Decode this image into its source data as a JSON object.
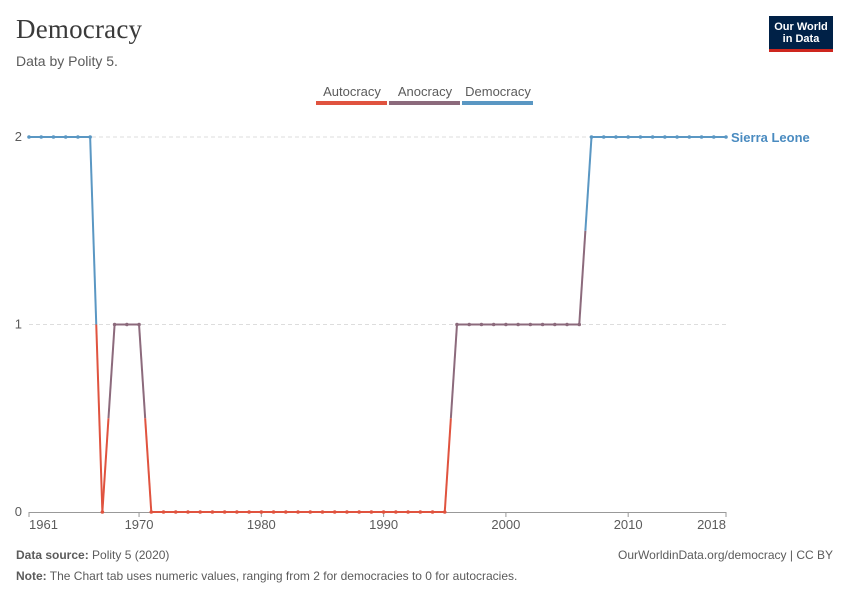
{
  "header": {
    "title": "Democracy",
    "subtitle": "Data by Polity 5."
  },
  "logo": {
    "line1": "Our World",
    "line2": "in Data"
  },
  "footer": {
    "source_label": "Data source:",
    "source_value": "Polity 5 (2020)",
    "url": "OurWorldinData.org/democracy | CC BY",
    "note_label": "Note:",
    "note_value": "The Chart tab uses numeric values, ranging from 2 for democracies to 0 for autocracies."
  },
  "colors": {
    "autocracy": "#e0533f",
    "anocracy": "#8c6a7c",
    "democracy": "#5a97c3",
    "series_label": "#4a8bc0"
  },
  "chart_data": {
    "type": "line",
    "x": [
      1961,
      1962,
      1963,
      1964,
      1965,
      1966,
      1967,
      1968,
      1969,
      1970,
      1971,
      1972,
      1973,
      1974,
      1975,
      1976,
      1977,
      1978,
      1979,
      1980,
      1981,
      1982,
      1983,
      1984,
      1985,
      1986,
      1987,
      1988,
      1989,
      1990,
      1991,
      1992,
      1993,
      1994,
      1995,
      1996,
      1997,
      1998,
      1999,
      2000,
      2001,
      2002,
      2003,
      2004,
      2005,
      2006,
      2007,
      2008,
      2009,
      2010,
      2011,
      2012,
      2013,
      2014,
      2015,
      2016,
      2017,
      2018
    ],
    "series": [
      {
        "name": "Sierra Leone",
        "values": [
          2,
          2,
          2,
          2,
          2,
          2,
          0,
          1,
          1,
          1,
          0,
          0,
          0,
          0,
          0,
          0,
          0,
          0,
          0,
          0,
          0,
          0,
          0,
          0,
          0,
          0,
          0,
          0,
          0,
          0,
          0,
          0,
          0,
          0,
          0,
          1,
          1,
          1,
          1,
          1,
          1,
          1,
          1,
          1,
          1,
          1,
          2,
          2,
          2,
          2,
          2,
          2,
          2,
          2,
          2,
          2,
          2,
          2
        ]
      }
    ],
    "legend": [
      {
        "label": "Autocracy",
        "color": "#e0533f"
      },
      {
        "label": "Anocracy",
        "color": "#8c6a7c"
      },
      {
        "label": "Democracy",
        "color": "#5a97c3"
      }
    ],
    "legend_position": "top-center",
    "x_ticks": [
      1961,
      1970,
      1980,
      1990,
      2000,
      2010,
      2018
    ],
    "y_ticks": [
      0,
      1,
      2
    ],
    "xlim": [
      1961,
      2018
    ],
    "ylim": [
      0,
      2
    ],
    "grid": "horizontal-dashed"
  }
}
